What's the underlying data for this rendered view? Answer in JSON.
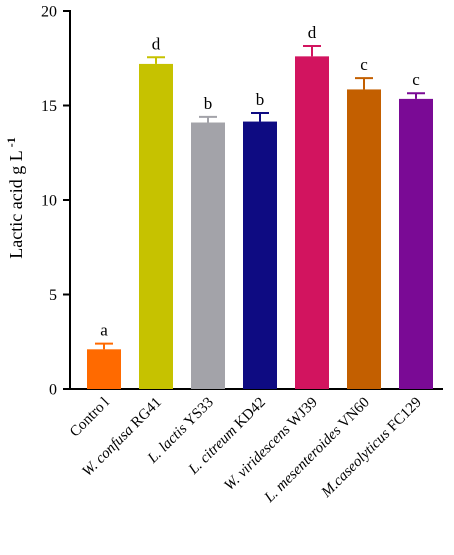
{
  "chart_data": {
    "type": "bar",
    "title": "",
    "xlabel": "",
    "ylabel": "Lactic acid g L",
    "ylabel_superscript": "-1",
    "ylim": [
      0,
      20
    ],
    "yticks": [
      0,
      5,
      10,
      15,
      20
    ],
    "grid": false,
    "categories": [
      {
        "prefix": "Contro",
        "italic": "",
        "suffix": "l"
      },
      {
        "prefix": "",
        "italic": "W. confusa",
        "suffix": " RG41"
      },
      {
        "prefix": "",
        "italic": "L. lactis",
        "suffix": " YS33"
      },
      {
        "prefix": "",
        "italic": "L. citreum",
        "suffix": " KD42"
      },
      {
        "prefix": "",
        "italic": "W. viridescens",
        "suffix": " WJ39"
      },
      {
        "prefix": "",
        "italic": "L. mesenteroides",
        "suffix": " VN60"
      },
      {
        "prefix": "",
        "italic": "M.caseolyticus",
        "suffix": " FC129"
      }
    ],
    "values": [
      2.1,
      17.2,
      14.1,
      14.15,
      17.6,
      15.85,
      15.35
    ],
    "errors": [
      0.3,
      0.35,
      0.3,
      0.45,
      0.55,
      0.6,
      0.3
    ],
    "significance": [
      "a",
      "d",
      "b",
      "b",
      "d",
      "c",
      "c"
    ],
    "colors": [
      "#ff6a00",
      "#c6c200",
      "#a3a3a9",
      "#0e0b82",
      "#d2145f",
      "#c35f00",
      "#7a0a95"
    ]
  }
}
